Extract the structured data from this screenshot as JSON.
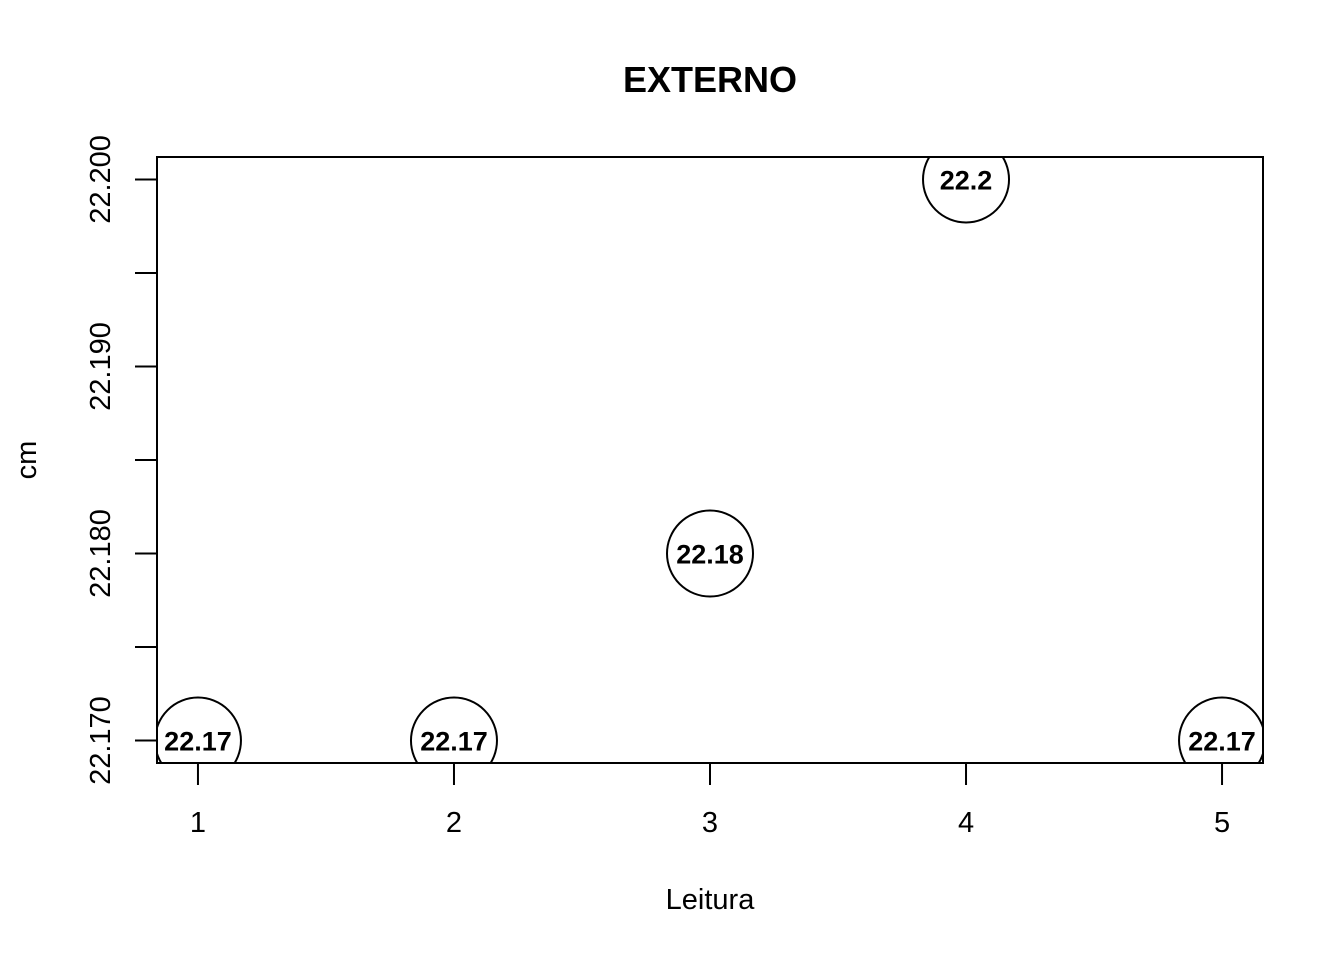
{
  "chart_data": {
    "type": "scatter",
    "title": "EXTERNO",
    "xlabel": "Leitura",
    "ylabel": "cm",
    "x": [
      1,
      2,
      3,
      4,
      5
    ],
    "y": [
      22.17,
      22.17,
      22.18,
      22.2,
      22.17
    ],
    "point_labels": [
      "22.17",
      "22.17",
      "22.18",
      "22.2",
      "22.17"
    ],
    "xticks": [
      1,
      2,
      3,
      4,
      5
    ],
    "xtick_labels": [
      "1",
      "2",
      "3",
      "4",
      "5"
    ],
    "yticks": [
      22.17,
      22.175,
      22.18,
      22.185,
      22.19,
      22.195,
      22.2
    ],
    "ytick_labels": [
      "22.170",
      "",
      "22.180",
      "",
      "22.190",
      "",
      "22.200"
    ],
    "xlim": [
      0.84,
      5.16
    ],
    "ylim": [
      22.1688,
      22.2012
    ],
    "grid": false,
    "marker": "open-circle",
    "colors": {
      "foreground": "#000000",
      "background": "#ffffff"
    }
  }
}
